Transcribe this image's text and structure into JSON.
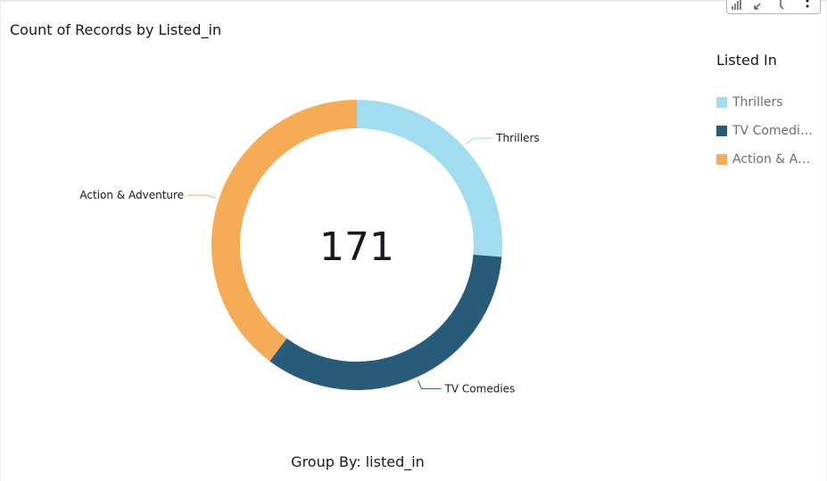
{
  "chart_data": {
    "type": "donut",
    "title": "Count of Records by Listed_in",
    "categories": [
      "Thrillers",
      "TV Comedies",
      "Action & Adventure"
    ],
    "values": [
      45,
      58,
      68
    ],
    "colors": [
      "#a2dcf0",
      "#285b7a",
      "#f6ac56"
    ],
    "center_label": 171,
    "legend_title": "Listed In",
    "xlabel": "Group By: listed_in"
  }
}
